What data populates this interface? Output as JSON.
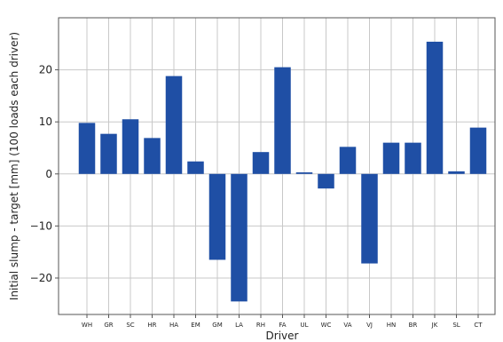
{
  "chart_data": {
    "type": "bar",
    "xlabel": "Driver",
    "ylabel": "Initial slump - target [mm] (100 loads each driver)",
    "ylim": [
      -27,
      30
    ],
    "yticks": [
      -20,
      -10,
      0,
      10,
      20
    ],
    "ytick_labels": [
      "−20",
      "−10",
      "0",
      "10",
      "20"
    ],
    "grid": true,
    "bar_color": "#1f4fa5",
    "categories": [
      "WH",
      "GR",
      "SC",
      "HR",
      "HA",
      "EM",
      "GM",
      "LA",
      "RH",
      "FA",
      "UL",
      "WC",
      "VA",
      "VJ",
      "HN",
      "BR",
      "JK",
      "SL",
      "CT"
    ],
    "values": [
      9.8,
      7.7,
      10.5,
      6.9,
      18.8,
      2.4,
      -16.5,
      -24.5,
      4.2,
      20.5,
      0.3,
      -2.8,
      5.2,
      -17.2,
      6.0,
      6.0,
      25.4,
      0.5,
      8.9
    ]
  }
}
